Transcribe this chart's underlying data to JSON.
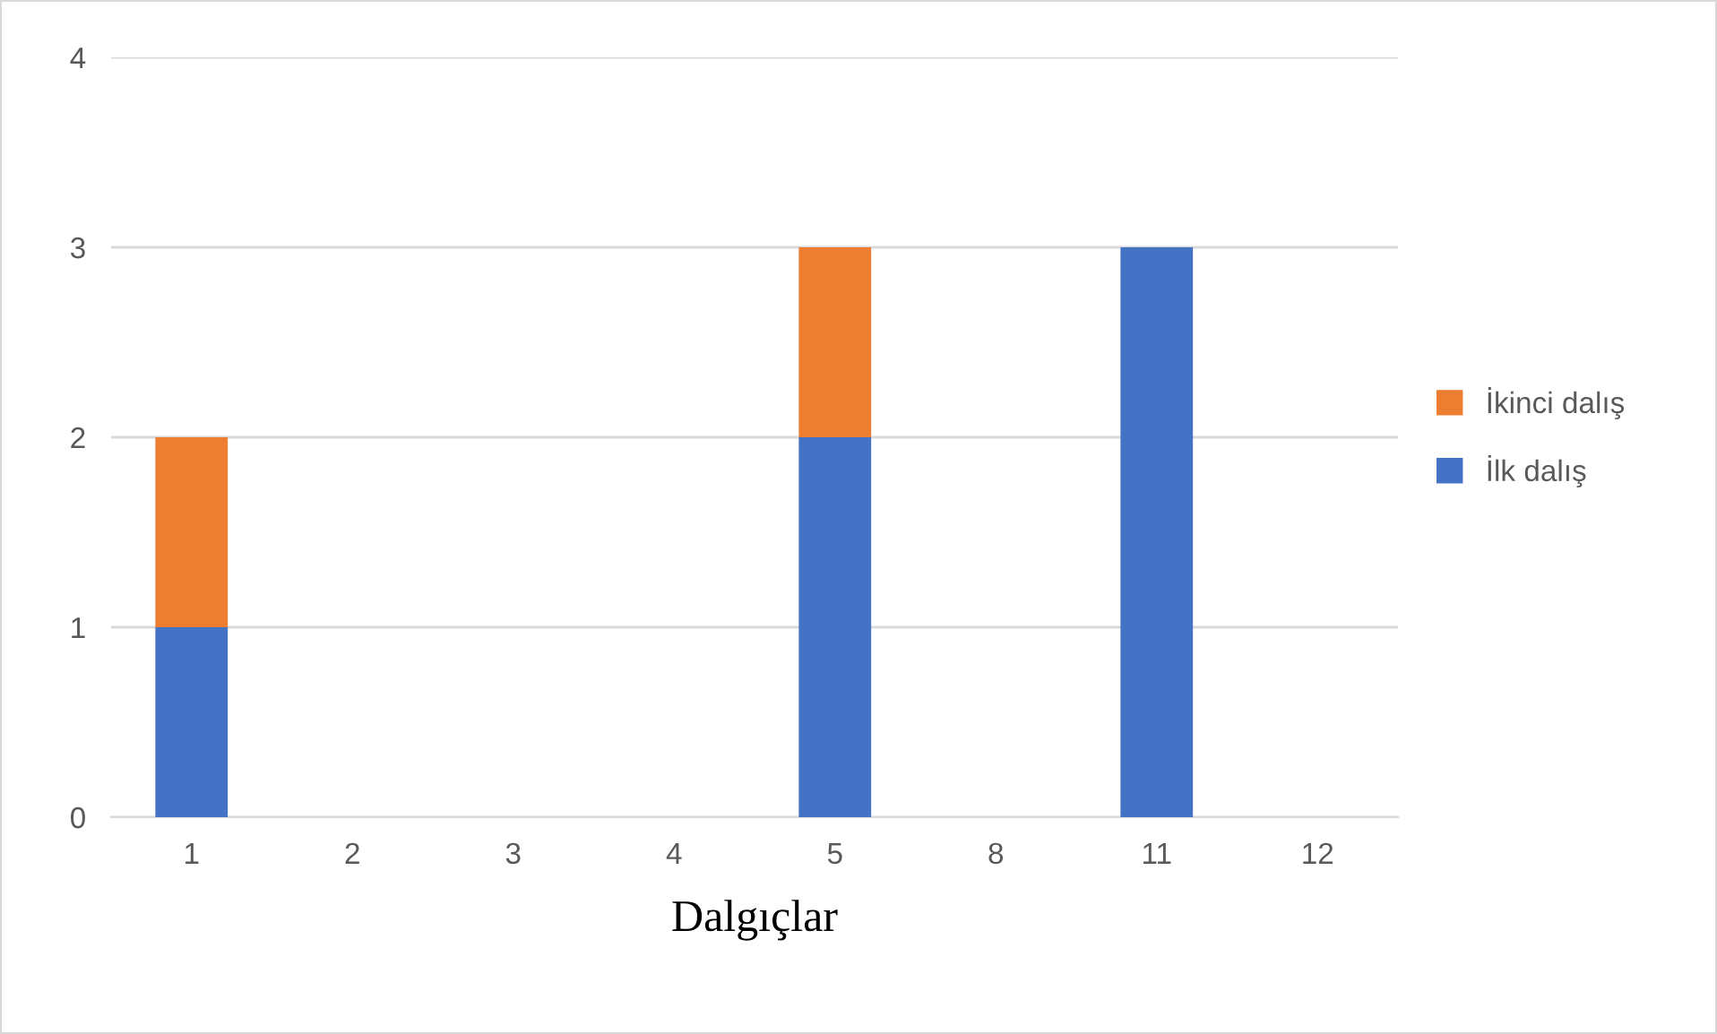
{
  "chart_data": {
    "type": "bar",
    "stacked": true,
    "xlabel": "Dalgıçlar",
    "categories": [
      "1",
      "2",
      "3",
      "4",
      "5",
      "8",
      "11",
      "12"
    ],
    "series": [
      {
        "name": "İlk dalış",
        "color": "#4472c4",
        "values": [
          1,
          0,
          0,
          0,
          2,
          0,
          3,
          0
        ]
      },
      {
        "name": "İkinci dalış",
        "color": "#ed7d31",
        "values": [
          1,
          0,
          0,
          0,
          1,
          0,
          0,
          0
        ]
      }
    ],
    "ylim": [
      0,
      4
    ],
    "yticks": [
      0,
      1,
      2,
      3,
      4
    ],
    "grid": "y",
    "legend": "right"
  }
}
